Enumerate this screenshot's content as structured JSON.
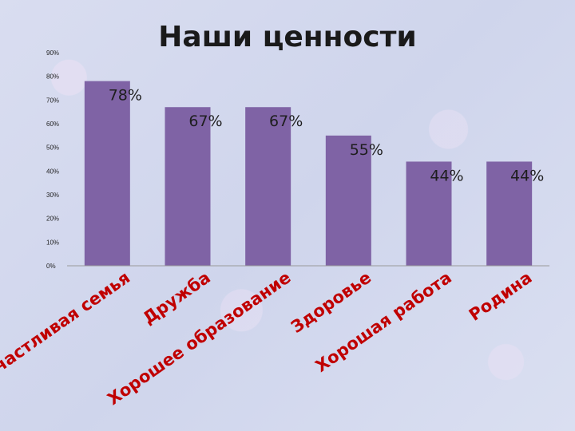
{
  "chart_data": {
    "type": "bar",
    "title": "Наши ценности",
    "categories": [
      "Счастливая семья",
      "Дружба",
      "Хорошее образование",
      "Здоровье",
      "Хорошая работа",
      "Родина"
    ],
    "values": [
      78,
      67,
      67,
      55,
      44,
      44
    ],
    "data_labels": [
      "78%",
      "67%",
      "67%",
      "55%",
      "44%",
      "44%"
    ],
    "ylim": [
      0,
      90
    ],
    "yticks": [
      "0%",
      "10%",
      "20%",
      "30%",
      "40%",
      "50%",
      "60%",
      "70%",
      "80%",
      "90%"
    ],
    "bar_color": "#7f63a5",
    "category_label_color": "#c00000",
    "grid": false,
    "legend": "none"
  }
}
